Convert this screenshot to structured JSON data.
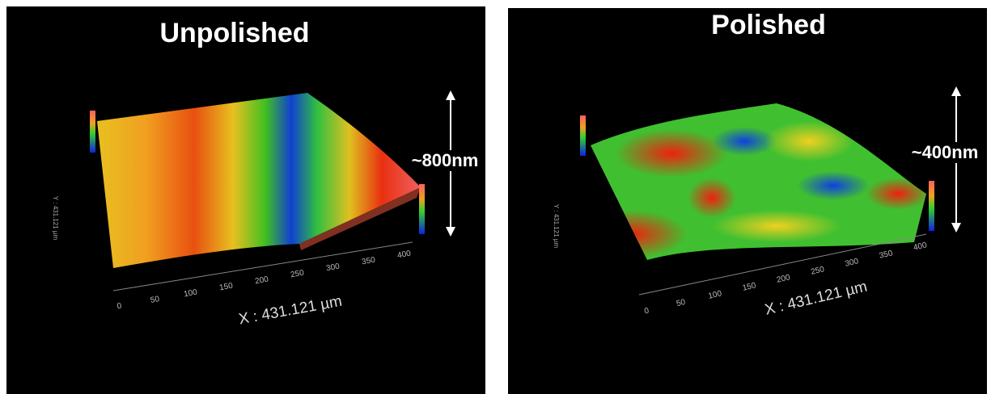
{
  "panels": [
    {
      "title": "Unpolished",
      "height_label": "~800nm",
      "x_axis_label": "X : 431.121 µm",
      "y_axis_label": "Y : 431.121 µm",
      "x_ticks": [
        0,
        50,
        100,
        150,
        200,
        250,
        300,
        350,
        400
      ]
    },
    {
      "title": "Polished",
      "height_label": "~400nm",
      "x_axis_label": "X : 431.121 µm",
      "y_axis_label": "Y : 431.121 µm",
      "x_ticks": [
        0,
        50,
        100,
        150,
        200,
        250,
        300,
        350,
        400
      ]
    }
  ]
}
